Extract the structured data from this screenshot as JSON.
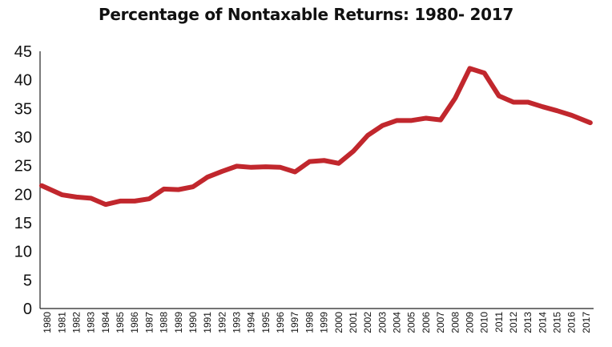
{
  "chart_data": {
    "type": "line",
    "title": "Percentage of Nontaxable Returns: 1980- 2017",
    "xlabel": "",
    "ylabel": "",
    "ylim": [
      0,
      45
    ],
    "yticks": [
      "0",
      "5",
      "10",
      "15",
      "20",
      "25",
      "30",
      "35",
      "40",
      "45"
    ],
    "grid": false,
    "legend": "none",
    "line_color": "#c1272d",
    "categories": [
      "1980",
      "1981",
      "1982",
      "1983",
      "1984",
      "1985",
      "1986",
      "1987",
      "1988",
      "1989",
      "1990",
      "1991",
      "1992",
      "1993",
      "1994",
      "1995",
      "1996",
      "1997",
      "1998",
      "1999",
      "2000",
      "2001",
      "2002",
      "2003",
      "2004",
      "2005",
      "2006",
      "2007",
      "2008",
      "2009",
      "2010",
      "2011",
      "2012",
      "2013",
      "2014",
      "2015",
      "2016",
      "2017"
    ],
    "series": [
      {
        "values": [
          21.5,
          19.9,
          19.5,
          19.3,
          18.2,
          18.8,
          18.8,
          19.2,
          20.9,
          20.8,
          21.3,
          23.0,
          24.0,
          24.9,
          24.7,
          24.8,
          24.7,
          23.9,
          25.7,
          25.9,
          25.4,
          27.5,
          30.3,
          32.0,
          32.9,
          32.9,
          33.3,
          33.0,
          36.8,
          42.0,
          41.2,
          37.2,
          36.1,
          36.1,
          35.3,
          34.6,
          33.8,
          32.5
        ]
      }
    ]
  }
}
